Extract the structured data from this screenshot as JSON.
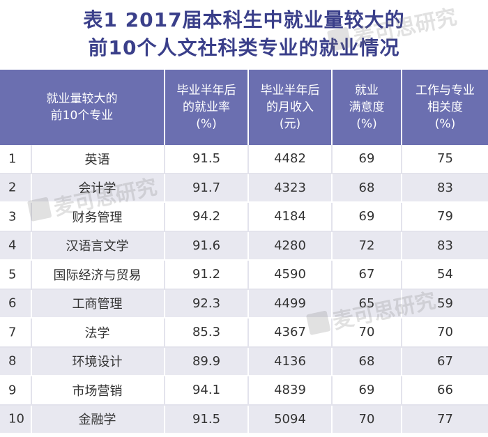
{
  "title": {
    "line1": "表1 2017届本科生中就业量较大的",
    "line2": "前10个人文社科类专业的就业情况"
  },
  "watermark_text": "麦可思研究",
  "colors": {
    "header_bg": "#6b6fb0",
    "title_text": "#3a3f8a",
    "stripe_bg": "#e8e8f0"
  },
  "table": {
    "headers": [
      "就业量较大的\n前10个专业",
      "毕业半年后\n的就业率\n(%)",
      "毕业半年后\n的月收入\n(元)",
      "就业\n满意度\n(%)",
      "工作与专业\n相关度\n(%)"
    ],
    "rows": [
      {
        "rank": "1",
        "major": "英语",
        "employment_rate": "91.5",
        "income": "4482",
        "satisfaction": "69",
        "relevance": "75"
      },
      {
        "rank": "2",
        "major": "会计学",
        "employment_rate": "91.7",
        "income": "4323",
        "satisfaction": "68",
        "relevance": "83"
      },
      {
        "rank": "3",
        "major": "财务管理",
        "employment_rate": "94.2",
        "income": "4184",
        "satisfaction": "69",
        "relevance": "79"
      },
      {
        "rank": "4",
        "major": "汉语言文学",
        "employment_rate": "91.6",
        "income": "4280",
        "satisfaction": "72",
        "relevance": "83"
      },
      {
        "rank": "5",
        "major": "国际经济与贸易",
        "employment_rate": "91.2",
        "income": "4590",
        "satisfaction": "67",
        "relevance": "54"
      },
      {
        "rank": "6",
        "major": "工商管理",
        "employment_rate": "92.3",
        "income": "4499",
        "satisfaction": "65",
        "relevance": "59"
      },
      {
        "rank": "7",
        "major": "法学",
        "employment_rate": "85.3",
        "income": "4367",
        "satisfaction": "70",
        "relevance": "70"
      },
      {
        "rank": "8",
        "major": "环境设计",
        "employment_rate": "89.9",
        "income": "4136",
        "satisfaction": "68",
        "relevance": "67"
      },
      {
        "rank": "9",
        "major": "市场营销",
        "employment_rate": "94.1",
        "income": "4839",
        "satisfaction": "69",
        "relevance": "66"
      },
      {
        "rank": "10",
        "major": "金融学",
        "employment_rate": "91.5",
        "income": "5094",
        "satisfaction": "70",
        "relevance": "77"
      }
    ]
  }
}
